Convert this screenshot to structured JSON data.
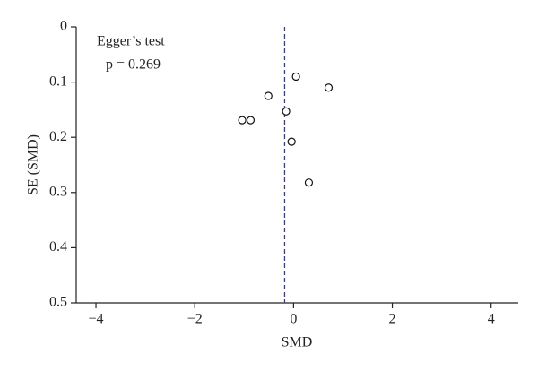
{
  "chart_data": {
    "type": "scatter",
    "x_label": "SMD",
    "y_label": "SE (SMD)",
    "annotations": [
      "Egger’s test",
      "p = 0.269"
    ],
    "x": [
      0.05,
      0.71,
      -0.51,
      -0.15,
      -1.04,
      -0.87,
      -0.04,
      0.31
    ],
    "values": [
      0.09,
      0.11,
      0.125,
      0.153,
      0.169,
      0.169,
      0.208,
      0.282
    ],
    "reference_line": -0.18,
    "reference_color": "#3a3a9a",
    "xlim": [
      -4.4,
      4.55
    ],
    "xticks": [
      {
        "value": -4,
        "label": "−4"
      },
      {
        "value": -2,
        "label": "−2"
      },
      0,
      2,
      4
    ],
    "ylim": [
      0,
      0.5
    ],
    "y_inverted": true,
    "yticks": [
      0,
      0.1,
      0.2,
      0.3,
      0.4,
      0.5
    ],
    "grid": false
  }
}
